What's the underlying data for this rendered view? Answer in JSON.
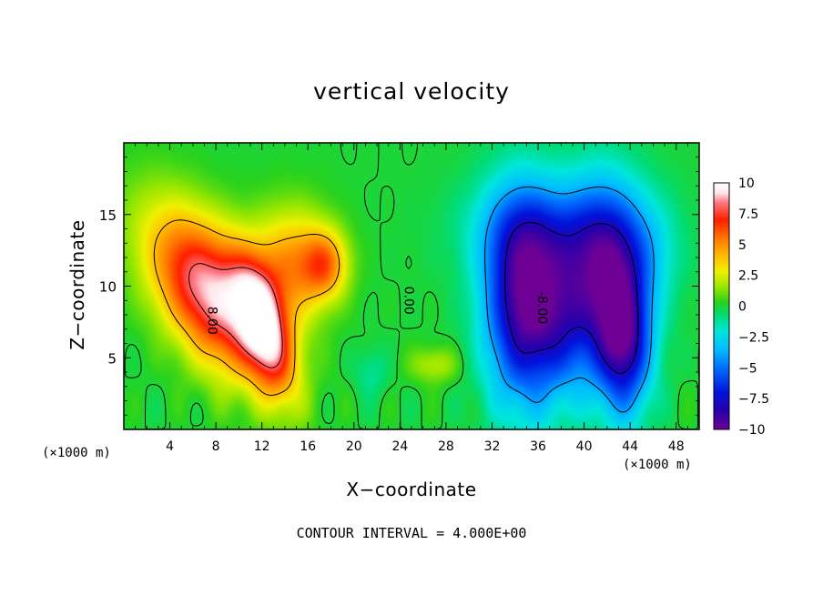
{
  "chart_data": {
    "type": "heatmap",
    "title": "vertical velocity",
    "xlabel": "X−coordinate",
    "ylabel": "Z−coordinate",
    "footer": "CONTOUR INTERVAL = 4.000E+00",
    "x_unit": "(×1000 m)",
    "y_unit": "(×1000 m)",
    "xlim": [
      0,
      50
    ],
    "ylim": [
      0,
      20
    ],
    "xticks": [
      4,
      8,
      12,
      16,
      20,
      24,
      28,
      32,
      36,
      40,
      44,
      48
    ],
    "yticks": [
      5,
      10,
      15
    ],
    "colorbar": {
      "range": [
        -10,
        10
      ],
      "tick_values": [
        10,
        7.5,
        5,
        2.5,
        0,
        -2.5,
        -5,
        -7.5,
        -10
      ],
      "tick_labels": [
        "10",
        "7.5",
        "5",
        "2.5",
        "0",
        "−2.5",
        "−5",
        "−7.5",
        "−10"
      ]
    },
    "contour_labels": [
      {
        "text": "8.00",
        "x": 7.3,
        "z": 7.6
      },
      {
        "text": "0.00",
        "x": 24.4,
        "z": 9.0
      },
      {
        "text": "-8.00",
        "x": 36.0,
        "z": 8.5
      }
    ],
    "features": [
      {
        "sign": "positive",
        "x": 7.5,
        "z": 9.5,
        "sx": 3.2,
        "sz": 4.0,
        "amp": 9.0,
        "rot": 0.5
      },
      {
        "sign": "positive",
        "x": 12.2,
        "z": 7.0,
        "sx": 1.5,
        "sz": 3.2,
        "amp": 7.5,
        "rot": 0.3
      },
      {
        "sign": "positive",
        "x": 14.5,
        "z": 11.5,
        "sx": 2.4,
        "sz": 2.8,
        "amp": 4.5,
        "rot": 0.0
      },
      {
        "sign": "positive",
        "x": 17.5,
        "z": 11.5,
        "sx": 1.4,
        "sz": 1.7,
        "amp": 4.5,
        "rot": 0.0
      },
      {
        "sign": "positive",
        "x": 27.0,
        "z": 4.5,
        "sx": 1.5,
        "sz": 0.9,
        "amp": 2.0,
        "rot": 0.0
      },
      {
        "sign": "negative",
        "x": 34.5,
        "z": 9.0,
        "sx": 2.3,
        "sz": 5.0,
        "amp": -8.5,
        "rot": 0.0
      },
      {
        "sign": "negative",
        "x": 38.0,
        "z": 8.0,
        "sx": 2.2,
        "sz": 4.0,
        "amp": -5.0,
        "rot": 0.0
      },
      {
        "sign": "negative",
        "x": 41.5,
        "z": 11.0,
        "sx": 2.2,
        "sz": 4.5,
        "amp": -6.0,
        "rot": 0.0
      },
      {
        "sign": "negative",
        "x": 43.5,
        "z": 6.0,
        "sx": 1.7,
        "sz": 3.5,
        "amp": -8.0,
        "rot": 0.0
      },
      {
        "sign": "negative",
        "x": 44.5,
        "z": 12.5,
        "sx": 2.5,
        "sz": 3.0,
        "amp": -3.0,
        "rot": 0.0
      },
      {
        "sign": "negative",
        "x": 36.5,
        "z": 14.0,
        "sx": 4.5,
        "sz": 2.5,
        "amp": -3.0,
        "rot": 0.0
      },
      {
        "sign": "negative",
        "x": 21.5,
        "z": 4.0,
        "sx": 1.0,
        "sz": 1.2,
        "amp": -1.2,
        "rot": 0.0
      }
    ]
  }
}
